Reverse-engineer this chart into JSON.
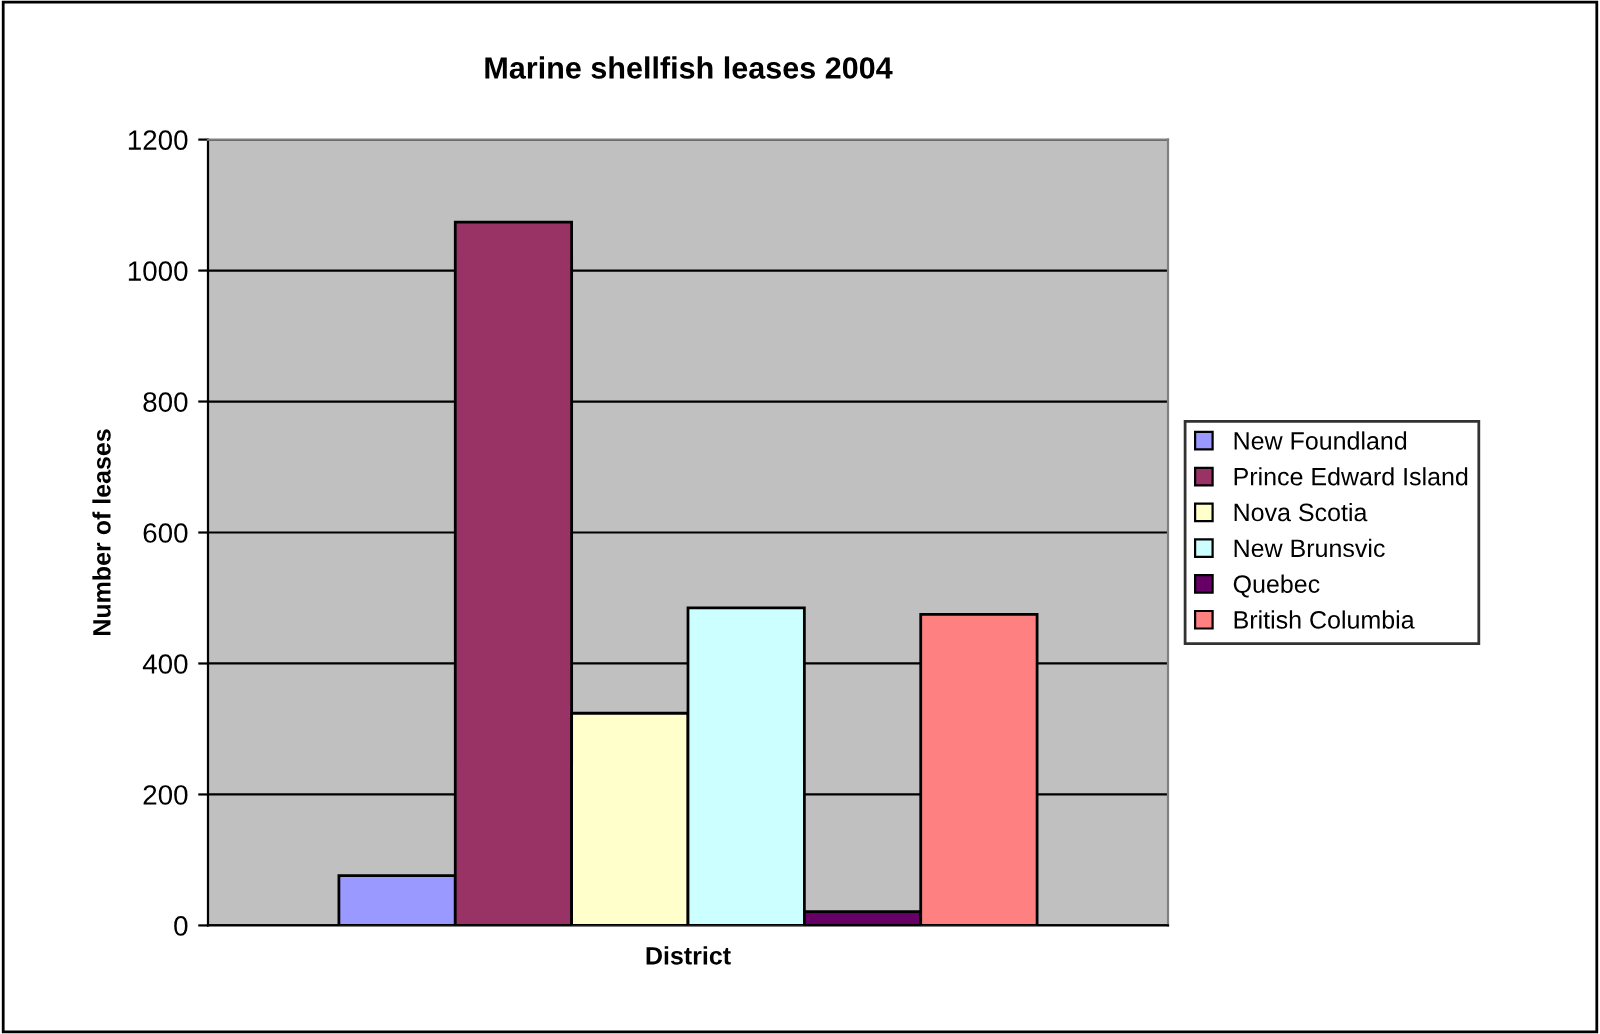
{
  "chart_data": {
    "type": "bar",
    "title": "Marine shellfish leases 2004",
    "xlabel": "District",
    "ylabel": "Number of leases",
    "categories": [
      null
    ],
    "series": [
      {
        "name": "New Foundland",
        "color": "#9999ff",
        "values": [
          76
        ]
      },
      {
        "name": "Prince Edward Island",
        "color": "#993366",
        "values": [
          1074
        ]
      },
      {
        "name": "Nova Scotia",
        "color": "#ffffcc",
        "values": [
          324
        ]
      },
      {
        "name": "New Brunsvic",
        "color": "#ccffff",
        "values": [
          485
        ]
      },
      {
        "name": "Quebec",
        "color": "#660066",
        "values": [
          21
        ]
      },
      {
        "name": "British Columbia",
        "color": "#ff8080",
        "values": [
          475
        ]
      }
    ],
    "ylim": [
      0,
      1200
    ],
    "yticks": [
      0,
      200,
      400,
      600,
      800,
      1000,
      1200
    ],
    "grid": "y",
    "legend": "right"
  }
}
